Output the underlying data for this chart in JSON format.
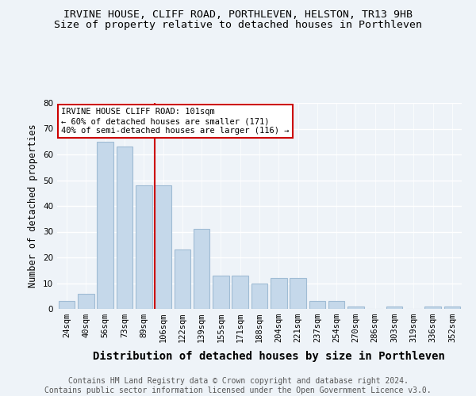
{
  "title": "IRVINE HOUSE, CLIFF ROAD, PORTHLEVEN, HELSTON, TR13 9HB",
  "subtitle": "Size of property relative to detached houses in Porthleven",
  "xlabel": "Distribution of detached houses by size in Porthleven",
  "ylabel": "Number of detached properties",
  "categories": [
    "24sqm",
    "40sqm",
    "56sqm",
    "73sqm",
    "89sqm",
    "106sqm",
    "122sqm",
    "139sqm",
    "155sqm",
    "171sqm",
    "188sqm",
    "204sqm",
    "221sqm",
    "237sqm",
    "254sqm",
    "270sqm",
    "286sqm",
    "303sqm",
    "319sqm",
    "336sqm",
    "352sqm"
  ],
  "values": [
    3,
    6,
    65,
    63,
    48,
    48,
    23,
    31,
    13,
    13,
    10,
    12,
    12,
    3,
    3,
    1,
    0,
    1,
    0,
    1,
    1
  ],
  "bar_color": "#c5d8ea",
  "bar_edge_color": "#a0bcd4",
  "highlight_index": 5,
  "highlight_line_color": "#cc0000",
  "annotation_text": "IRVINE HOUSE CLIFF ROAD: 101sqm\n← 60% of detached houses are smaller (171)\n40% of semi-detached houses are larger (116) →",
  "annotation_box_color": "#ffffff",
  "annotation_box_edge_color": "#cc0000",
  "ylim": [
    0,
    80
  ],
  "yticks": [
    0,
    10,
    20,
    30,
    40,
    50,
    60,
    70,
    80
  ],
  "background_color": "#eef3f8",
  "footer_line1": "Contains HM Land Registry data © Crown copyright and database right 2024.",
  "footer_line2": "Contains public sector information licensed under the Open Government Licence v3.0.",
  "title_fontsize": 9.5,
  "subtitle_fontsize": 9.5,
  "xlabel_fontsize": 10,
  "ylabel_fontsize": 8.5,
  "tick_fontsize": 7.5,
  "annotation_fontsize": 7.5,
  "footer_fontsize": 7
}
